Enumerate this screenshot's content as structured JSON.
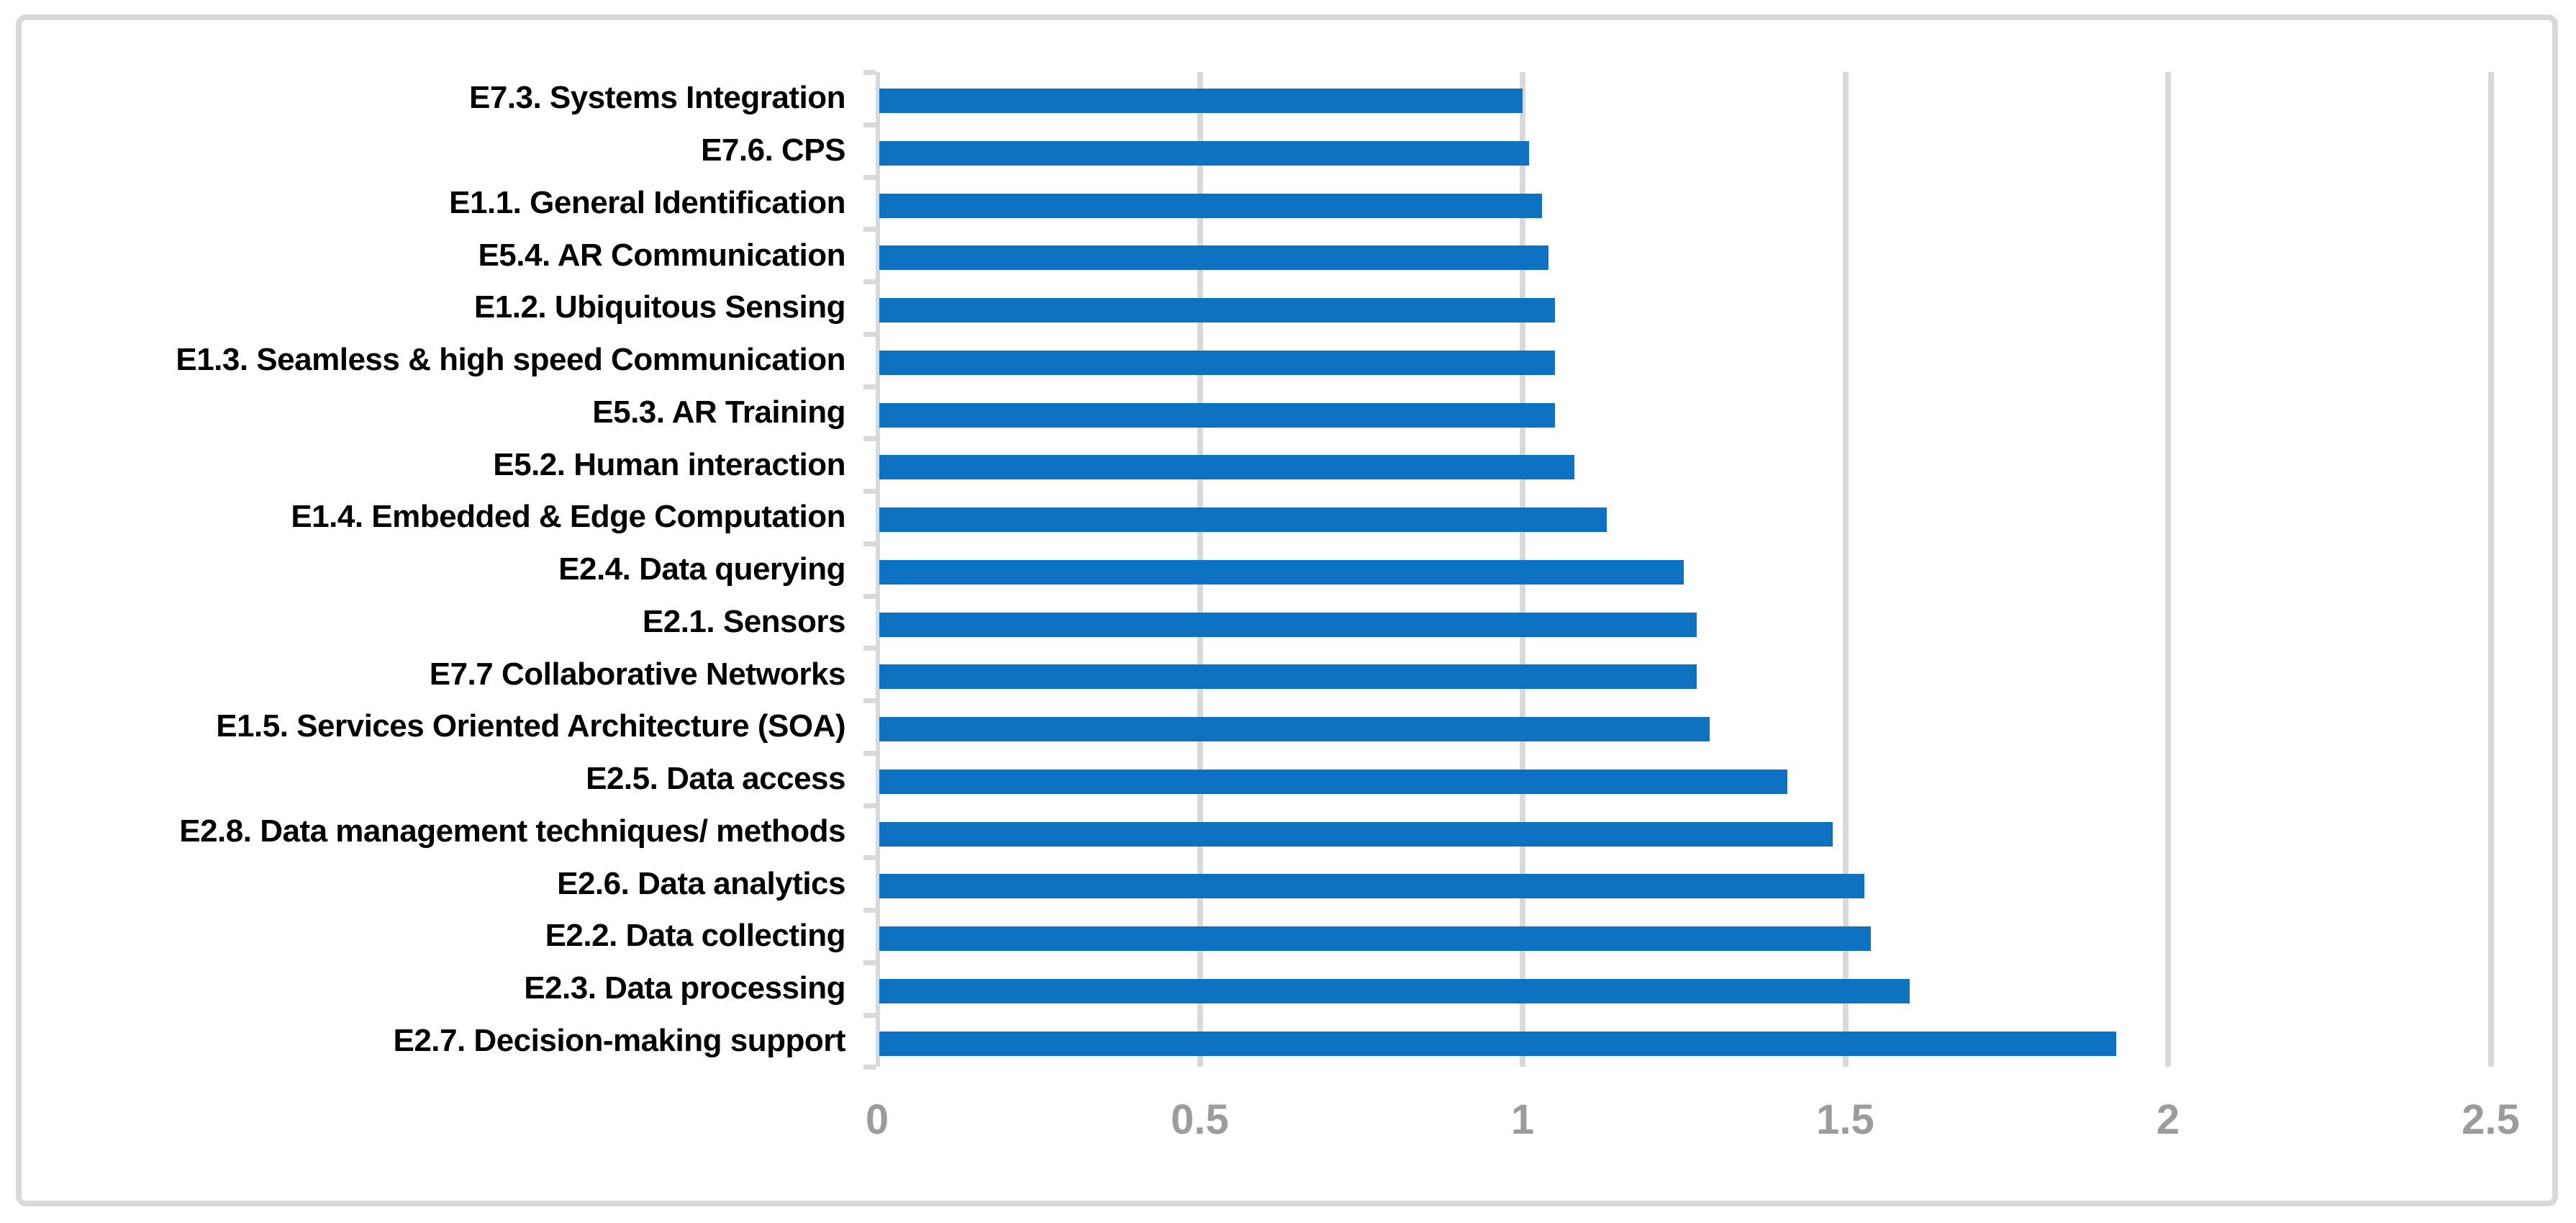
{
  "chart_data": {
    "type": "bar",
    "orientation": "horizontal",
    "title": "",
    "categories": [
      "E7.3. Systems Integration",
      "E7.6. CPS",
      "E1.1. General Identification",
      "E5.4. AR Communication",
      "E1.2. Ubiquitous Sensing",
      "E1.3. Seamless & high speed Communication",
      "E5.3. AR Training",
      "E5.2. Human interaction",
      "E1.4. Embedded & Edge Computation",
      "E2.4. Data querying",
      "E2.1. Sensors",
      "E7.7 Collaborative Networks",
      "E1.5. Services Oriented Architecture (SOA)",
      "E2.5. Data access",
      "E2.8. Data management techniques/ methods",
      "E2.6. Data analytics",
      "E2.2. Data collecting",
      "E2.3. Data processing",
      "E2.7. Decision-making support"
    ],
    "values": [
      1.0,
      1.01,
      1.03,
      1.04,
      1.05,
      1.05,
      1.05,
      1.08,
      1.13,
      1.25,
      1.27,
      1.27,
      1.29,
      1.41,
      1.48,
      1.53,
      1.54,
      1.6,
      1.92
    ],
    "x_ticks": [
      "0",
      "0.5",
      "1",
      "1.5",
      "2",
      "2.5"
    ],
    "x_tick_values": [
      0,
      0.5,
      1,
      1.5,
      2,
      2.5
    ],
    "xlim": [
      0,
      2.5
    ],
    "xlabel": "",
    "ylabel": "",
    "grid": true,
    "legend": false,
    "colors": {
      "bar": "#0e72c2",
      "gridline": "#d9d9d9",
      "axis_line": "#d9d9d9",
      "tick_label": "#9c9c9c",
      "category_label": "#000000",
      "frame_border": "#d9d9d9",
      "background": "#ffffff"
    }
  }
}
